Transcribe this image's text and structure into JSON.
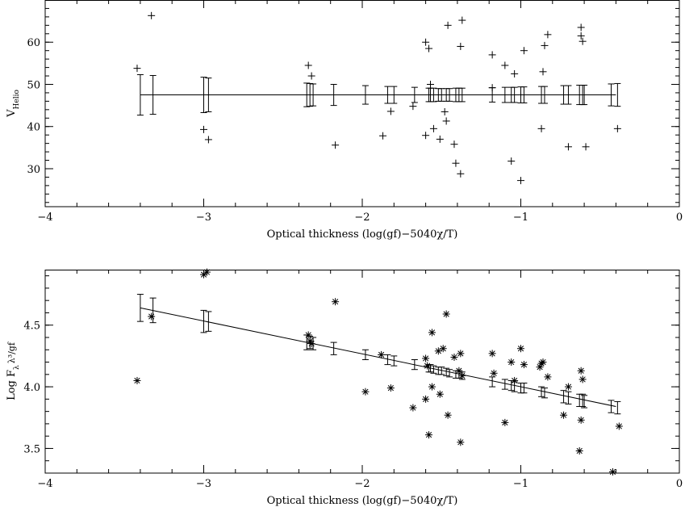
{
  "chart_data": [
    {
      "type": "scatter",
      "title": "",
      "xlabel": "Optical thickness (log(gf)−5040χ/T)",
      "ylabel_main": "V",
      "ylabel_sub": "Helio",
      "xlim": [
        -4,
        0
      ],
      "ylim": [
        21,
        70
      ],
      "xticks": [
        -4,
        -3,
        -2,
        -1,
        0
      ],
      "yticks": [
        30,
        40,
        50,
        60
      ],
      "tick_labels_x": [
        "−4",
        "−3",
        "−2",
        "−1",
        "0"
      ],
      "tick_labels_y": [
        "30",
        "40",
        "50",
        "60"
      ],
      "marker": "plus",
      "points": [
        [
          -3.42,
          53.8
        ],
        [
          -3.33,
          66.3
        ],
        [
          -3.0,
          39.3
        ],
        [
          -2.97,
          36.9
        ],
        [
          -2.34,
          54.5
        ],
        [
          -2.32,
          52.0
        ],
        [
          -2.17,
          35.6
        ],
        [
          -1.87,
          37.8
        ],
        [
          -1.82,
          43.6
        ],
        [
          -1.68,
          44.8
        ],
        [
          -1.6,
          60.0
        ],
        [
          -1.6,
          37.9
        ],
        [
          -1.58,
          58.5
        ],
        [
          -1.57,
          50.0
        ],
        [
          -1.55,
          39.5
        ],
        [
          -1.51,
          37.0
        ],
        [
          -1.48,
          43.5
        ],
        [
          -1.47,
          41.3
        ],
        [
          -1.46,
          64.0
        ],
        [
          -1.42,
          35.8
        ],
        [
          -1.41,
          31.3
        ],
        [
          -1.38,
          28.8
        ],
        [
          -1.38,
          59.0
        ],
        [
          -1.37,
          65.2
        ],
        [
          -1.18,
          57.0
        ],
        [
          -1.18,
          49.2
        ],
        [
          -1.1,
          54.5
        ],
        [
          -1.06,
          31.8
        ],
        [
          -1.04,
          52.5
        ],
        [
          -1.0,
          27.2
        ],
        [
          -0.98,
          58.0
        ],
        [
          -0.87,
          39.5
        ],
        [
          -0.86,
          53.0
        ],
        [
          -0.85,
          59.2
        ],
        [
          -0.83,
          61.8
        ],
        [
          -0.7,
          35.2
        ],
        [
          -0.62,
          63.5
        ],
        [
          -0.62,
          61.5
        ],
        [
          -0.61,
          60.2
        ],
        [
          -0.59,
          35.2
        ],
        [
          -0.39,
          39.5
        ]
      ],
      "fit_line": [
        [
          -3.4,
          47.5
        ],
        [
          -0.4,
          47.5
        ]
      ],
      "error_bars": [
        [
          -3.4,
          47.5,
          4.8
        ],
        [
          -3.32,
          47.5,
          4.6
        ],
        [
          -3.0,
          47.5,
          4.2
        ],
        [
          -2.97,
          47.5,
          4.0
        ],
        [
          -2.35,
          47.5,
          2.8
        ],
        [
          -2.33,
          47.5,
          2.7
        ],
        [
          -2.31,
          47.5,
          2.6
        ],
        [
          -2.18,
          47.5,
          2.5
        ],
        [
          -1.98,
          47.5,
          2.2
        ],
        [
          -1.84,
          47.5,
          2.0
        ],
        [
          -1.8,
          47.5,
          2.0
        ],
        [
          -1.67,
          47.5,
          1.8
        ],
        [
          -1.58,
          47.5,
          1.6
        ],
        [
          -1.57,
          47.5,
          1.6
        ],
        [
          -1.55,
          47.5,
          1.6
        ],
        [
          -1.52,
          47.5,
          1.5
        ],
        [
          -1.5,
          47.5,
          1.5
        ],
        [
          -1.47,
          47.5,
          1.5
        ],
        [
          -1.45,
          47.5,
          1.5
        ],
        [
          -1.41,
          47.5,
          1.6
        ],
        [
          -1.39,
          47.5,
          1.6
        ],
        [
          -1.37,
          47.5,
          1.6
        ],
        [
          -1.18,
          47.5,
          1.7
        ],
        [
          -1.1,
          47.5,
          1.8
        ],
        [
          -1.06,
          47.5,
          1.8
        ],
        [
          -1.04,
          47.5,
          1.8
        ],
        [
          -1.0,
          47.5,
          1.9
        ],
        [
          -0.98,
          47.5,
          1.9
        ],
        [
          -0.87,
          47.5,
          2.0
        ],
        [
          -0.85,
          47.5,
          2.0
        ],
        [
          -0.73,
          47.5,
          2.2
        ],
        [
          -0.7,
          47.5,
          2.2
        ],
        [
          -0.63,
          47.5,
          2.3
        ],
        [
          -0.61,
          47.5,
          2.3
        ],
        [
          -0.6,
          47.5,
          2.3
        ],
        [
          -0.43,
          47.5,
          2.6
        ],
        [
          -0.39,
          47.5,
          2.7
        ]
      ]
    },
    {
      "type": "scatter",
      "title": "",
      "xlabel": "Optical thickness (log(gf)−5040χ/T)",
      "ylabel_main": "Log F",
      "ylabel_sub": "λ",
      "ylabel_tail": "λ³/gf",
      "xlim": [
        -4,
        0
      ],
      "ylim": [
        3.3,
        4.95
      ],
      "xticks": [
        -4,
        -3,
        -2,
        -1,
        0
      ],
      "yticks": [
        3.5,
        4.0,
        4.5
      ],
      "tick_labels_x": [
        "−4",
        "−3",
        "−2",
        "−1",
        "0"
      ],
      "tick_labels_y": [
        "3.5",
        "4.0",
        "4.5"
      ],
      "marker": "asterisk",
      "points": [
        [
          -3.42,
          4.05
        ],
        [
          -3.33,
          4.57
        ],
        [
          -3.0,
          4.91
        ],
        [
          -2.98,
          4.93
        ],
        [
          -2.34,
          4.42
        ],
        [
          -2.33,
          4.37
        ],
        [
          -2.32,
          4.35
        ],
        [
          -2.17,
          4.69
        ],
        [
          -1.98,
          3.96
        ],
        [
          -1.88,
          4.26
        ],
        [
          -1.82,
          3.99
        ],
        [
          -1.68,
          3.83
        ],
        [
          -1.6,
          4.23
        ],
        [
          -1.6,
          3.9
        ],
        [
          -1.59,
          4.17
        ],
        [
          -1.58,
          3.61
        ],
        [
          -1.56,
          4.44
        ],
        [
          -1.56,
          4.0
        ],
        [
          -1.52,
          4.29
        ],
        [
          -1.51,
          3.94
        ],
        [
          -1.49,
          4.31
        ],
        [
          -1.47,
          4.59
        ],
        [
          -1.46,
          3.77
        ],
        [
          -1.42,
          4.24
        ],
        [
          -1.39,
          4.13
        ],
        [
          -1.38,
          4.27
        ],
        [
          -1.38,
          3.55
        ],
        [
          -1.37,
          4.09
        ],
        [
          -1.18,
          4.27
        ],
        [
          -1.17,
          4.11
        ],
        [
          -1.1,
          3.71
        ],
        [
          -1.06,
          4.2
        ],
        [
          -1.04,
          4.05
        ],
        [
          -1.0,
          4.31
        ],
        [
          -0.98,
          4.18
        ],
        [
          -0.88,
          4.16
        ],
        [
          -0.87,
          4.19
        ],
        [
          -0.86,
          4.2
        ],
        [
          -0.83,
          4.08
        ],
        [
          -0.73,
          3.77
        ],
        [
          -0.7,
          4.0
        ],
        [
          -0.62,
          3.73
        ],
        [
          -0.62,
          4.13
        ],
        [
          -0.61,
          4.06
        ],
        [
          -0.63,
          3.48
        ],
        [
          -0.42,
          3.31
        ],
        [
          -0.38,
          3.68
        ]
      ],
      "fit_line": [
        [
          -3.4,
          4.64
        ],
        [
          -0.4,
          3.84
        ]
      ],
      "error_bars": [
        [
          -3.4,
          4.64,
          0.11
        ],
        [
          -3.32,
          4.62,
          0.1
        ],
        [
          -3.0,
          4.53,
          0.09
        ],
        [
          -2.97,
          4.53,
          0.08
        ],
        [
          -2.35,
          4.36,
          0.06
        ],
        [
          -2.33,
          4.36,
          0.05
        ],
        [
          -2.31,
          4.35,
          0.05
        ],
        [
          -2.18,
          4.31,
          0.05
        ],
        [
          -1.98,
          4.26,
          0.04
        ],
        [
          -1.84,
          4.22,
          0.04
        ],
        [
          -1.8,
          4.21,
          0.04
        ],
        [
          -1.67,
          4.18,
          0.04
        ],
        [
          -1.58,
          4.15,
          0.03
        ],
        [
          -1.57,
          4.15,
          0.03
        ],
        [
          -1.55,
          4.14,
          0.03
        ],
        [
          -1.52,
          4.13,
          0.03
        ],
        [
          -1.5,
          4.13,
          0.03
        ],
        [
          -1.47,
          4.12,
          0.03
        ],
        [
          -1.45,
          4.11,
          0.03
        ],
        [
          -1.41,
          4.1,
          0.03
        ],
        [
          -1.39,
          4.1,
          0.03
        ],
        [
          -1.37,
          4.09,
          0.03
        ],
        [
          -1.18,
          4.04,
          0.04
        ],
        [
          -1.1,
          4.02,
          0.04
        ],
        [
          -1.06,
          4.01,
          0.04
        ],
        [
          -1.04,
          4.0,
          0.04
        ],
        [
          -1.0,
          3.99,
          0.04
        ],
        [
          -0.98,
          3.99,
          0.04
        ],
        [
          -0.87,
          3.96,
          0.04
        ],
        [
          -0.85,
          3.95,
          0.04
        ],
        [
          -0.73,
          3.92,
          0.05
        ],
        [
          -0.7,
          3.91,
          0.05
        ],
        [
          -0.63,
          3.89,
          0.05
        ],
        [
          -0.61,
          3.89,
          0.05
        ],
        [
          -0.6,
          3.88,
          0.05
        ],
        [
          -0.43,
          3.84,
          0.05
        ],
        [
          -0.39,
          3.83,
          0.05
        ]
      ]
    }
  ]
}
